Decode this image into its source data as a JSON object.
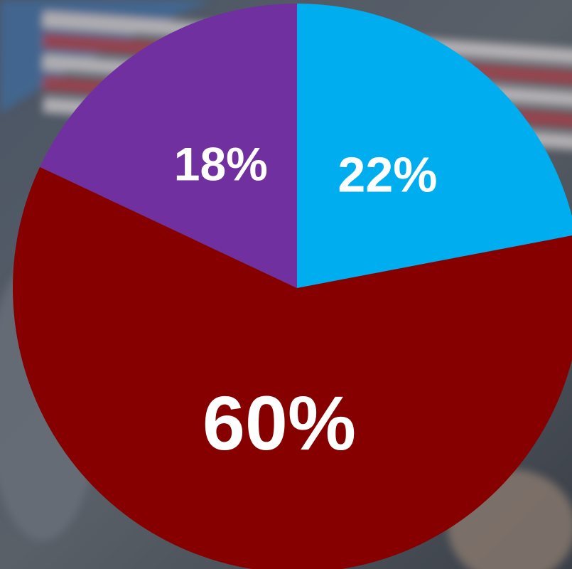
{
  "chart_data": {
    "type": "pie",
    "values": [
      22,
      60,
      18
    ],
    "value_labels": [
      "22%",
      "60%",
      "18%"
    ],
    "colors": [
      "#00adef",
      "#870000",
      "#7030a0"
    ]
  }
}
